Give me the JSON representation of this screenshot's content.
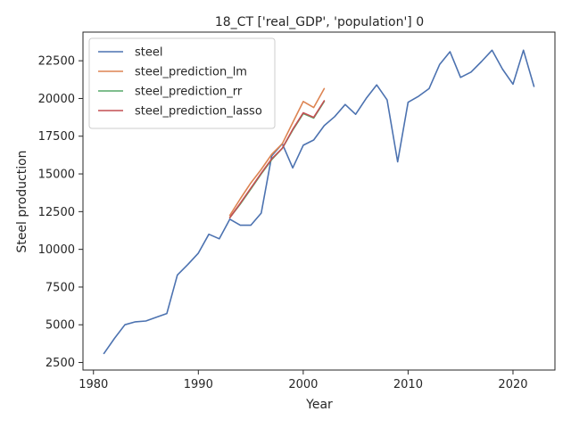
{
  "chart_data": {
    "type": "line",
    "title": "18_CT ['real_GDP', 'population'] 0",
    "xlabel": "Year",
    "ylabel": "Steel production",
    "xlim": [
      1979,
      2024
    ],
    "ylim": [
      2000,
      24400
    ],
    "xticks": [
      1980,
      1990,
      2000,
      2010,
      2020
    ],
    "yticks": [
      2500,
      5000,
      7500,
      10000,
      12500,
      15000,
      17500,
      20000,
      22500
    ],
    "grid": false,
    "legend_position": "upper-left",
    "series": [
      {
        "name": "steel",
        "color": "#4c72b0",
        "x": [
          1981,
          1982,
          1983,
          1984,
          1985,
          1986,
          1987,
          1988,
          1989,
          1990,
          1991,
          1992,
          1993,
          1994,
          1995,
          1996,
          1997,
          1998,
          1999,
          2000,
          2001,
          2002,
          2003,
          2004,
          2005,
          2006,
          2007,
          2008,
          2009,
          2010,
          2011,
          2012,
          2013,
          2014,
          2015,
          2016,
          2017,
          2018,
          2019,
          2020,
          2021,
          2022
        ],
        "y": [
          3100,
          4100,
          5000,
          5200,
          5250,
          5500,
          5750,
          8300,
          9000,
          9750,
          11000,
          10700,
          12000,
          11600,
          11600,
          12400,
          16200,
          17000,
          15400,
          16900,
          17250,
          18200,
          18800,
          19600,
          18950,
          20000,
          20900,
          19900,
          15800,
          19750,
          20150,
          20650,
          22250,
          23100,
          21400,
          21750,
          22450,
          23200,
          21950,
          20950,
          23200,
          20800
        ]
      },
      {
        "name": "steel_prediction_lm",
        "color": "#dd8452",
        "x": [
          1993,
          1994,
          1995,
          1996,
          1997,
          1998,
          1999,
          2000,
          2001,
          2002
        ],
        "y": [
          12250,
          13350,
          14400,
          15300,
          16300,
          17000,
          18400,
          19800,
          19400,
          20650
        ]
      },
      {
        "name": "steel_prediction_rr",
        "color": "#55a868",
        "x": [
          1993,
          1994,
          1995,
          1996,
          1997,
          1998,
          1999,
          2000,
          2001,
          2002
        ],
        "y": [
          12100,
          13000,
          14000,
          15000,
          15950,
          16700,
          17900,
          19000,
          18700,
          19800
        ]
      },
      {
        "name": "steel_prediction_lasso",
        "color": "#c44e52",
        "x": [
          1993,
          1994,
          1995,
          1996,
          1997,
          1998,
          1999,
          2000,
          2001,
          2002
        ],
        "y": [
          12100,
          13050,
          14050,
          15050,
          16000,
          16700,
          17950,
          19050,
          18750,
          19850
        ]
      }
    ]
  }
}
